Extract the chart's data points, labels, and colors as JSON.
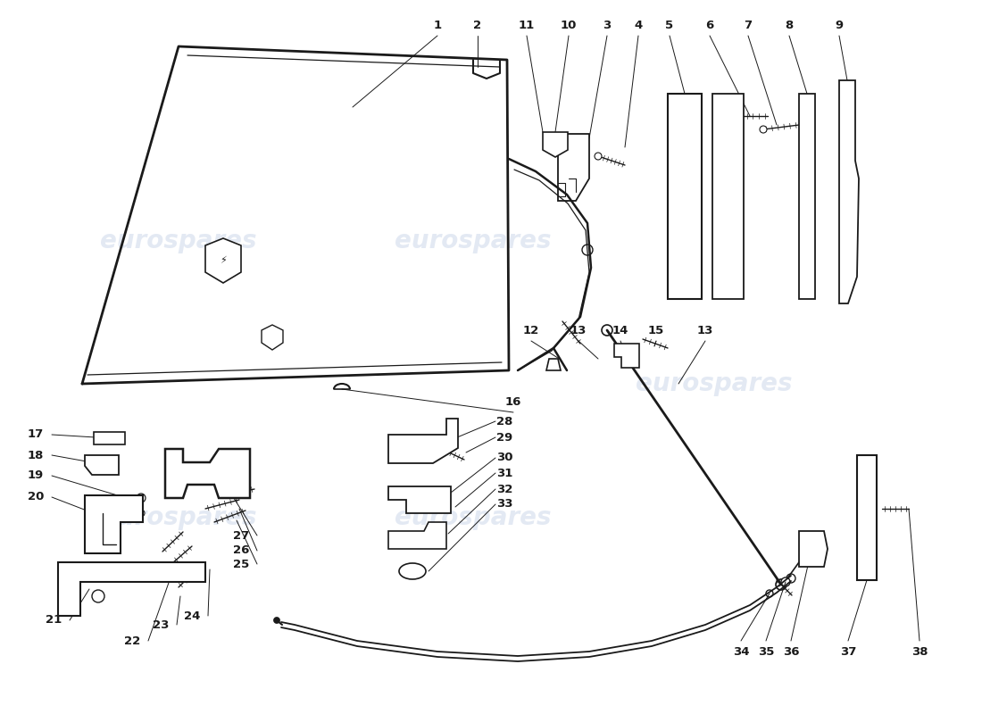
{
  "bg_color": "#ffffff",
  "line_color": "#1a1a1a",
  "watermark_color": "#c8d4e8",
  "watermark_text": "eurospares",
  "figsize": [
    11.0,
    8.0
  ],
  "dpi": 100
}
